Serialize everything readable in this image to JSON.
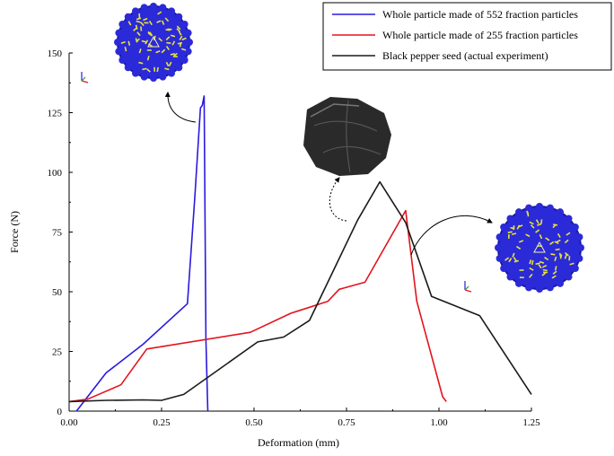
{
  "chart_data": {
    "type": "line",
    "xlabel": "Deformation (mm)",
    "ylabel": "Force (N)",
    "xlim": [
      0,
      1.25
    ],
    "ylim": [
      0,
      150
    ],
    "x_ticks": [
      "0.00",
      "0.25",
      "0.50",
      "0.75",
      "1.00",
      "1.25"
    ],
    "y_ticks": [
      "0",
      "25",
      "50",
      "75",
      "100",
      "125",
      "150"
    ],
    "x_tick_values": [
      0,
      0.25,
      0.5,
      0.75,
      1.0,
      1.25
    ],
    "y_tick_values": [
      0,
      25,
      50,
      75,
      100,
      125,
      150
    ],
    "grid": false,
    "legend_position": "top-right",
    "series": [
      {
        "name": "Whole particle made of 552 fraction particles",
        "color": "#2a1adf",
        "points": [
          [
            0.02,
            0
          ],
          [
            0.1,
            16
          ],
          [
            0.2,
            28
          ],
          [
            0.32,
            45
          ],
          [
            0.34,
            90
          ],
          [
            0.355,
            127
          ],
          [
            0.36,
            128
          ],
          [
            0.365,
            132
          ],
          [
            0.37,
            30
          ],
          [
            0.375,
            0
          ]
        ]
      },
      {
        "name": "Whole particle made of 255 fraction particles",
        "color": "#e3141e",
        "points": [
          [
            0.0,
            4
          ],
          [
            0.05,
            5
          ],
          [
            0.14,
            11
          ],
          [
            0.21,
            26
          ],
          [
            0.49,
            33
          ],
          [
            0.6,
            41
          ],
          [
            0.62,
            42
          ],
          [
            0.7,
            46
          ],
          [
            0.73,
            51
          ],
          [
            0.8,
            54
          ],
          [
            0.91,
            84
          ],
          [
            0.94,
            46
          ],
          [
            1.01,
            6
          ],
          [
            1.02,
            4
          ]
        ]
      },
      {
        "name": "Black pepper seed (actual experiment)",
        "color": "#1a1a1a",
        "points": [
          [
            0.0,
            4
          ],
          [
            0.1,
            4.5
          ],
          [
            0.2,
            4.7
          ],
          [
            0.25,
            4.5
          ],
          [
            0.31,
            7
          ],
          [
            0.51,
            29
          ],
          [
            0.58,
            31
          ],
          [
            0.65,
            38
          ],
          [
            0.78,
            80
          ],
          [
            0.84,
            96
          ],
          [
            0.91,
            79
          ],
          [
            0.98,
            48
          ],
          [
            1.11,
            40
          ],
          [
            1.25,
            7
          ]
        ]
      }
    ],
    "annotations": [
      {
        "name": "particle-552-render-icon",
        "color": "#2b2ad8"
      },
      {
        "name": "pepper-seed-photo-icon",
        "color": "#2a2a2a"
      },
      {
        "name": "particle-255-render-icon",
        "color": "#2b2ad8"
      }
    ]
  }
}
